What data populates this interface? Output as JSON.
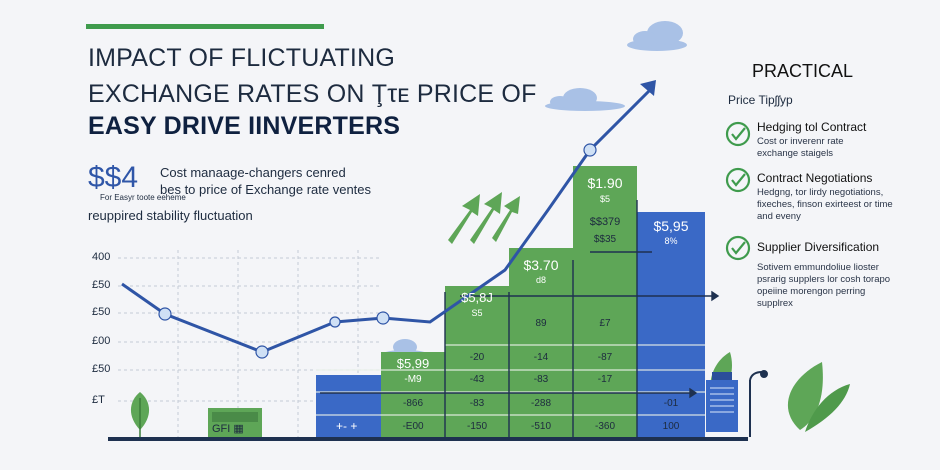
{
  "title": {
    "line1": "IMPACT OF FLICTUATING",
    "line2": "EXCHANGE RATES ON Ţτᴇ PRICE OF",
    "line3": "EASY DRIVE IINVERTERS"
  },
  "summary": {
    "big_value": "$$4",
    "line1": "Cost manaage-changers cenred",
    "line2": "bes to price of Exchange rate ventes",
    "small": "For Easyr toote eeheme",
    "line3": "reuppired stability fluctuation"
  },
  "y_axis_ticks": [
    "400",
    "£50",
    "£50",
    "£00",
    "£50",
    "£T"
  ],
  "bars": [
    {
      "label": "$5,99",
      "rows": [
        "-M9",
        "-866",
        "-E00"
      ],
      "color": "#5ea657"
    },
    {
      "label": "",
      "rows": [
        "-20",
        "-43",
        "-83",
        "-150"
      ],
      "color": "#5ea657"
    },
    {
      "label": "$5,8J",
      "sub": "S5",
      "rows": [
        "-14",
        "-83",
        "-288",
        "-510"
      ],
      "color": "#5ea657"
    },
    {
      "label": "$3.70",
      "sub": "d8",
      "rows": [
        "89",
        "-87",
        "-17",
        "-360"
      ],
      "color": "#5ea657"
    },
    {
      "label": "$1.90",
      "sub": "$5",
      "mid": "$$379",
      "mid2": "$$35",
      "rows": [
        "£7",
        "-87",
        "-17",
        "-360"
      ],
      "color": "#5ea657"
    },
    {
      "label": "$5,95",
      "sub": "8%",
      "rows": [
        "-01",
        "100"
      ],
      "color": "#3a69c6"
    }
  ],
  "footer_box": {
    "label": "GFI ▦"
  },
  "arrow_box": {
    "label": "+- +"
  },
  "tips": {
    "heading": "PRACTICAL",
    "subheading": "Price Tipʃʃyp",
    "items": [
      {
        "title": "Hedging tol Contract",
        "desc": "Cost or inverenr rate exchange staigels"
      },
      {
        "title": "Contract Negotiations",
        "desc": "Hedgng, tor lirdy negotiations, fixeches, finson exirteest or time and eveny"
      },
      {
        "title": "Supplier Diversification",
        "desc": "Sotivem emmundoliue lioster psrarig supplers lor cosh torapo opeiine morengon perring supplrex"
      }
    ]
  },
  "colors": {
    "green": "#5ea657",
    "blue": "#3a69c6",
    "navy": "#22438f",
    "bg": "#f4f5f8",
    "accent_bar": "#3f9b4d"
  }
}
